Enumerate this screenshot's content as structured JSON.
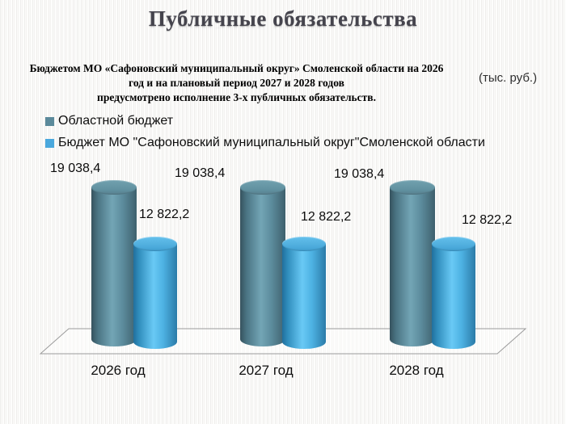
{
  "slide": {
    "title": "Публичные обязательства",
    "subtitle_lines": [
      "Бюджетом МО «Сафоновский муниципальный округ» Смоленской области на 2026",
      "год и на плановый период 2027 и 2028 годов",
      "предусмотрено исполнение 3-х публичных обязательств."
    ],
    "units_note": "(тыс. руб.)"
  },
  "legend": {
    "items": [
      {
        "label": "Областной бюджет",
        "color": "#5b8a9b"
      },
      {
        "label": "Бюджет МО \"Сафоновский муниципальный округ\"Смоленской области",
        "color": "#4aa8dd"
      }
    ]
  },
  "chart_data": {
    "type": "bar",
    "subtype": "3d-cylinder",
    "title": "",
    "xlabel": "",
    "ylabel": "",
    "units": "тыс. руб.",
    "categories": [
      "2026 год",
      "2027 год",
      "2028 год"
    ],
    "series": [
      {
        "name": "Областной бюджет",
        "color": "#5b8a9b",
        "values": [
          19038.4,
          19038.4,
          19038.4
        ],
        "value_labels": [
          "19 038,4",
          "19 038,4",
          "19 038,4"
        ]
      },
      {
        "name": "Бюджет МО \"Сафоновский муниципальный округ\"Смоленской области",
        "color": "#4aa8dd",
        "values": [
          12822.2,
          12822.2,
          12822.2
        ],
        "value_labels": [
          "12 822,2",
          "12 822,2",
          "12 822,2"
        ]
      }
    ],
    "ylim": [
      0,
      19038.4
    ],
    "grid": false,
    "legend_position": "top-left"
  }
}
